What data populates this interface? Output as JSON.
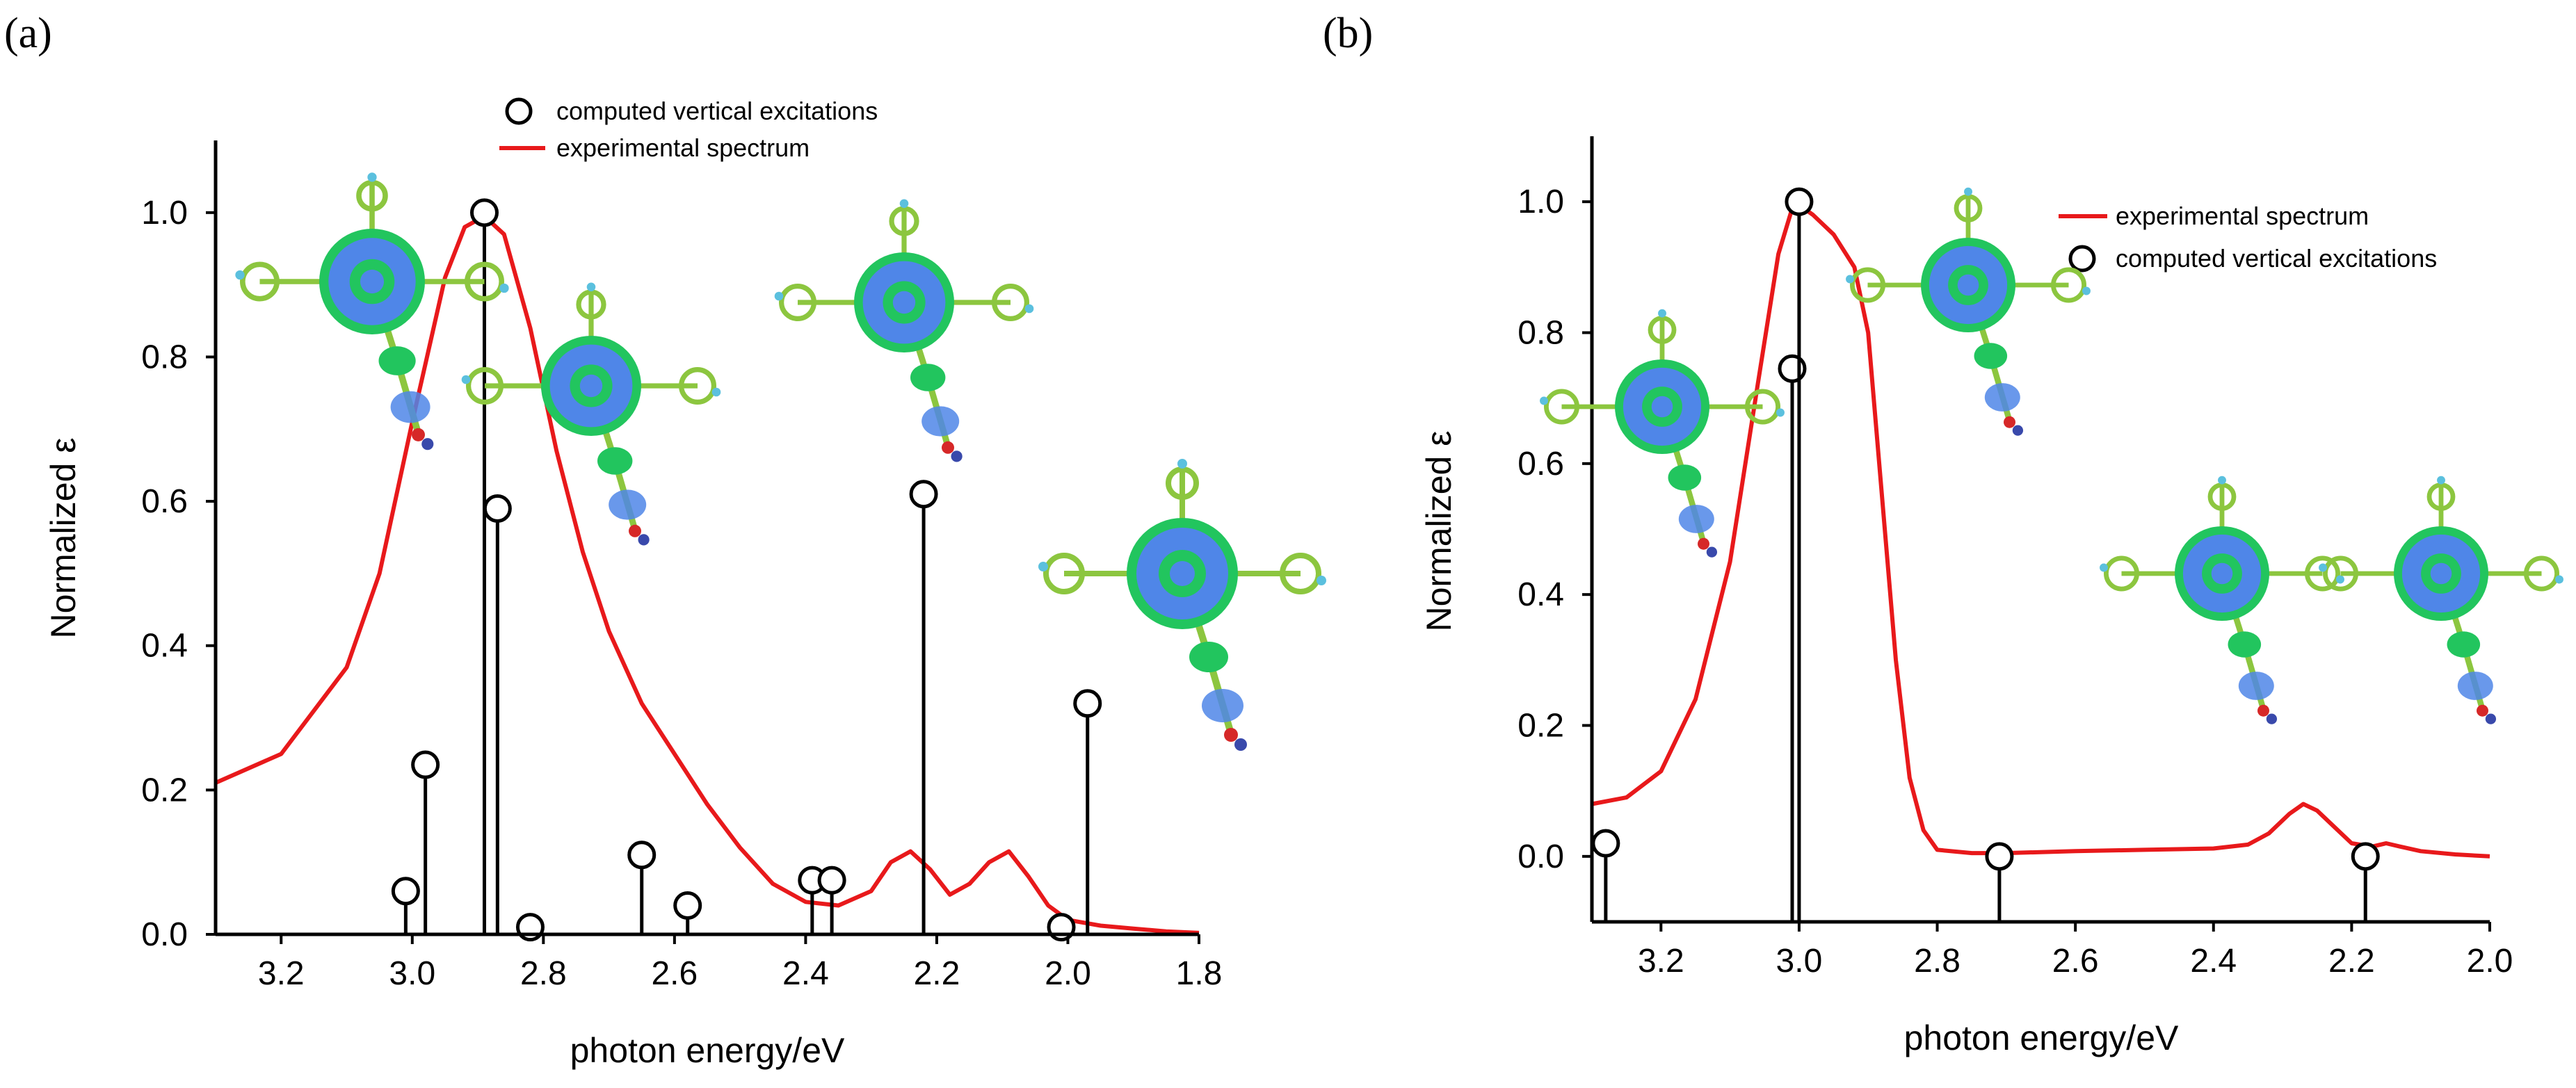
{
  "chart_data": [
    {
      "panel": "(a)",
      "type": "line",
      "xlabel": "photon energy/eV",
      "ylabel": "Normalized ε",
      "xlim": [
        3.3,
        1.8
      ],
      "ylim": [
        0.0,
        1.1
      ],
      "xticks": [
        "3.2",
        "3.0",
        "2.8",
        "2.6",
        "2.4",
        "2.2",
        "2.0",
        "1.8"
      ],
      "xtick_values": [
        3.2,
        3.0,
        2.8,
        2.6,
        2.4,
        2.2,
        2.0,
        1.8
      ],
      "yticks": [
        "0.0",
        "0.2",
        "0.4",
        "0.6",
        "0.8",
        "1.0"
      ],
      "ytick_values": [
        0.0,
        0.2,
        0.4,
        0.6,
        0.8,
        1.0
      ],
      "legend": [
        {
          "label": "computed vertical excitations",
          "kind": "marker"
        },
        {
          "label": "experimental spectrum",
          "kind": "line",
          "color": "#e8191b"
        }
      ],
      "series": [
        {
          "name": "experimental spectrum",
          "color": "#e8191b",
          "x": [
            3.3,
            3.2,
            3.1,
            3.05,
            3.0,
            2.95,
            2.92,
            2.89,
            2.86,
            2.82,
            2.78,
            2.74,
            2.7,
            2.65,
            2.6,
            2.55,
            2.5,
            2.45,
            2.4,
            2.35,
            2.3,
            2.27,
            2.24,
            2.21,
            2.18,
            2.15,
            2.12,
            2.09,
            2.06,
            2.03,
            2.0,
            1.95,
            1.9,
            1.85,
            1.8
          ],
          "y": [
            0.21,
            0.25,
            0.37,
            0.5,
            0.71,
            0.91,
            0.98,
            0.995,
            0.97,
            0.84,
            0.67,
            0.53,
            0.42,
            0.32,
            0.25,
            0.18,
            0.12,
            0.07,
            0.045,
            0.04,
            0.06,
            0.1,
            0.115,
            0.09,
            0.055,
            0.07,
            0.1,
            0.115,
            0.08,
            0.04,
            0.02,
            0.012,
            0.008,
            0.004,
            0.002
          ]
        },
        {
          "name": "computed vertical excitations",
          "type": "stem",
          "x": [
            3.01,
            2.98,
            2.89,
            2.87,
            2.82,
            2.65,
            2.58,
            2.39,
            2.36,
            2.22,
            2.01,
            1.97
          ],
          "y": [
            0.06,
            0.235,
            1.0,
            0.59,
            0.01,
            0.11,
            0.04,
            0.075,
            0.075,
            0.61,
            0.01,
            0.32
          ]
        }
      ]
    },
    {
      "panel": "(b)",
      "type": "line",
      "xlabel": "photon energy/eV",
      "ylabel": "Normalized ε",
      "xlim": [
        3.3,
        2.0
      ],
      "ylim": [
        -0.1,
        1.1
      ],
      "xticks": [
        "3.2",
        "3.0",
        "2.8",
        "2.6",
        "2.4",
        "2.2",
        "2.0"
      ],
      "xtick_values": [
        3.2,
        3.0,
        2.8,
        2.6,
        2.4,
        2.2,
        2.0
      ],
      "yticks": [
        "0.0",
        "0.2",
        "0.4",
        "0.6",
        "0.8",
        "1.0"
      ],
      "ytick_values": [
        0.0,
        0.2,
        0.4,
        0.6,
        0.8,
        1.0
      ],
      "legend": [
        {
          "label": "experimental spectrum",
          "kind": "line",
          "color": "#e8191b"
        },
        {
          "label": "computed vertical excitations",
          "kind": "marker"
        }
      ],
      "series": [
        {
          "name": "experimental spectrum",
          "color": "#e8191b",
          "x": [
            3.3,
            3.25,
            3.2,
            3.15,
            3.1,
            3.06,
            3.03,
            3.01,
            3.0,
            2.98,
            2.95,
            2.92,
            2.9,
            2.88,
            2.86,
            2.84,
            2.82,
            2.8,
            2.75,
            2.7,
            2.6,
            2.5,
            2.4,
            2.35,
            2.32,
            2.29,
            2.27,
            2.25,
            2.22,
            2.2,
            2.17,
            2.15,
            2.13,
            2.1,
            2.05,
            2.0
          ],
          "y": [
            0.08,
            0.09,
            0.13,
            0.24,
            0.45,
            0.72,
            0.92,
            0.99,
            0.995,
            0.98,
            0.95,
            0.9,
            0.8,
            0.55,
            0.3,
            0.12,
            0.04,
            0.01,
            0.005,
            0.005,
            0.008,
            0.01,
            0.012,
            0.018,
            0.035,
            0.065,
            0.08,
            0.07,
            0.04,
            0.02,
            0.015,
            0.02,
            0.015,
            0.008,
            0.003,
            0.0
          ]
        },
        {
          "name": "computed vertical excitations",
          "type": "stem",
          "x": [
            3.28,
            3.01,
            3.0,
            2.71,
            2.18
          ],
          "y": [
            0.02,
            0.745,
            1.0,
            0.0,
            0.0
          ]
        }
      ]
    }
  ]
}
